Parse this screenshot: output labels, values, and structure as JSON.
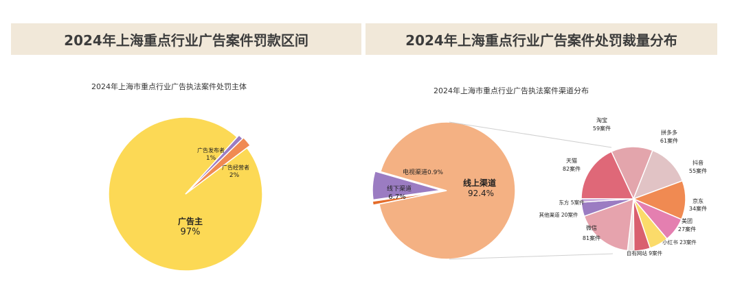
{
  "banners": {
    "left": "2024年上海重点行业广告案件罚款区间",
    "right": "2024年上海重点行业广告案件处罚裁量分布"
  },
  "chart_data": [
    {
      "type": "pie",
      "title": "2024年上海市重点行业广告执法案件处罚主体",
      "slices": [
        {
          "label": "广告主",
          "value": 97,
          "display": "97%",
          "color": "#fcd955"
        },
        {
          "label": "广告发布者",
          "value": 1,
          "display": "1%",
          "color": "#9b7cc2",
          "exploded": true
        },
        {
          "label": "广告经营者",
          "value": 2,
          "display": "2%",
          "color": "#f08a52",
          "exploded": true
        }
      ]
    },
    {
      "type": "pie",
      "title": "2024年上海市重点行业广告执法案件渠道分布",
      "slices": [
        {
          "label": "线上渠道",
          "value": 92.4,
          "display": "92.4%",
          "color": "#f4b183"
        },
        {
          "label": "线下渠道",
          "value": 6.7,
          "display": "6.7%",
          "color": "#9b7cc2",
          "exploded": true
        },
        {
          "label": "电视渠道",
          "value": 0.9,
          "display": "0.9%",
          "color": "#e46c2a",
          "exploded": true
        }
      ],
      "breakdown": {
        "of": "线上渠道",
        "unit": "案件",
        "slices": [
          {
            "label": "淘宝",
            "value": 59,
            "display": "59案件",
            "color": "#e3a5ac"
          },
          {
            "label": "拼多多",
            "value": 61,
            "display": "61案件",
            "color": "#e1c3c5"
          },
          {
            "label": "抖音",
            "value": 55,
            "display": "55案件",
            "color": "#f08a52"
          },
          {
            "label": "京东",
            "value": 34,
            "display": "34案件",
            "color": "#e47fb0"
          },
          {
            "label": "美团",
            "value": 27,
            "display": "27案件",
            "color": "#fbdb6a"
          },
          {
            "label": "小红书",
            "value": 23,
            "display": "23案件",
            "color": "#d9606f"
          },
          {
            "label": "自有网站",
            "value": 9,
            "display": "9案件",
            "color": "#eee0e0"
          },
          {
            "label": "微信",
            "value": 81,
            "display": "81案件",
            "color": "#e6a3ad"
          },
          {
            "label": "其他渠道",
            "value": 20,
            "display": "20案件",
            "color": "#9b7cc2"
          },
          {
            "label": "东方",
            "value": 5,
            "display": "5案件",
            "color": "#c5a5d8"
          },
          {
            "label": "天猫",
            "value": 82,
            "display": "82案件",
            "color": "#df6878"
          }
        ]
      }
    }
  ]
}
